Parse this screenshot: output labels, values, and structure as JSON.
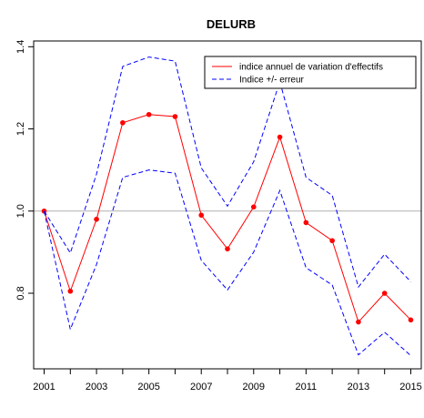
{
  "chart_data": {
    "type": "line",
    "title": "DELURB",
    "xlabel": "",
    "ylabel": "",
    "x": [
      2001,
      2002,
      2003,
      2004,
      2005,
      2006,
      2007,
      2008,
      2009,
      2010,
      2011,
      2012,
      2013,
      2014,
      2015
    ],
    "x_tick_labels": [
      "2001",
      "2003",
      "2005",
      "2007",
      "2009",
      "2011",
      "2013",
      "2015"
    ],
    "y_tick_labels": [
      "0.8",
      "1.0",
      "1.2",
      "1.4"
    ],
    "xlim": [
      2000.6,
      2015.4
    ],
    "ylim": [
      0.616,
      1.414
    ],
    "y_ticks": [
      0.8,
      1.0,
      1.2,
      1.4
    ],
    "reference_line": 1.0,
    "legend_position": "top-right",
    "series": [
      {
        "name": "indice annuel de variation d'effectifs",
        "color": "#ff0000",
        "style": "solid-with-points",
        "values": [
          1.0,
          0.805,
          0.98,
          1.215,
          1.235,
          1.23,
          0.99,
          0.908,
          1.01,
          1.18,
          0.972,
          0.928,
          0.73,
          0.8,
          0.735
        ]
      },
      {
        "name": "Indice +/- erreur",
        "color": "#0000ff",
        "style": "dashed",
        "values": [
          1.0,
          0.898,
          1.09,
          1.352,
          1.375,
          1.365,
          1.105,
          1.012,
          1.12,
          1.315,
          1.082,
          1.038,
          0.815,
          0.895,
          0.828
        ]
      },
      {
        "name": "",
        "color": "#0000ff",
        "style": "dashed",
        "values": [
          1.0,
          0.712,
          0.87,
          1.082,
          1.1,
          1.092,
          0.88,
          0.808,
          0.9,
          1.05,
          0.862,
          0.82,
          0.65,
          0.705,
          0.648
        ]
      }
    ],
    "reference_line_color": "#b0b0b0"
  }
}
